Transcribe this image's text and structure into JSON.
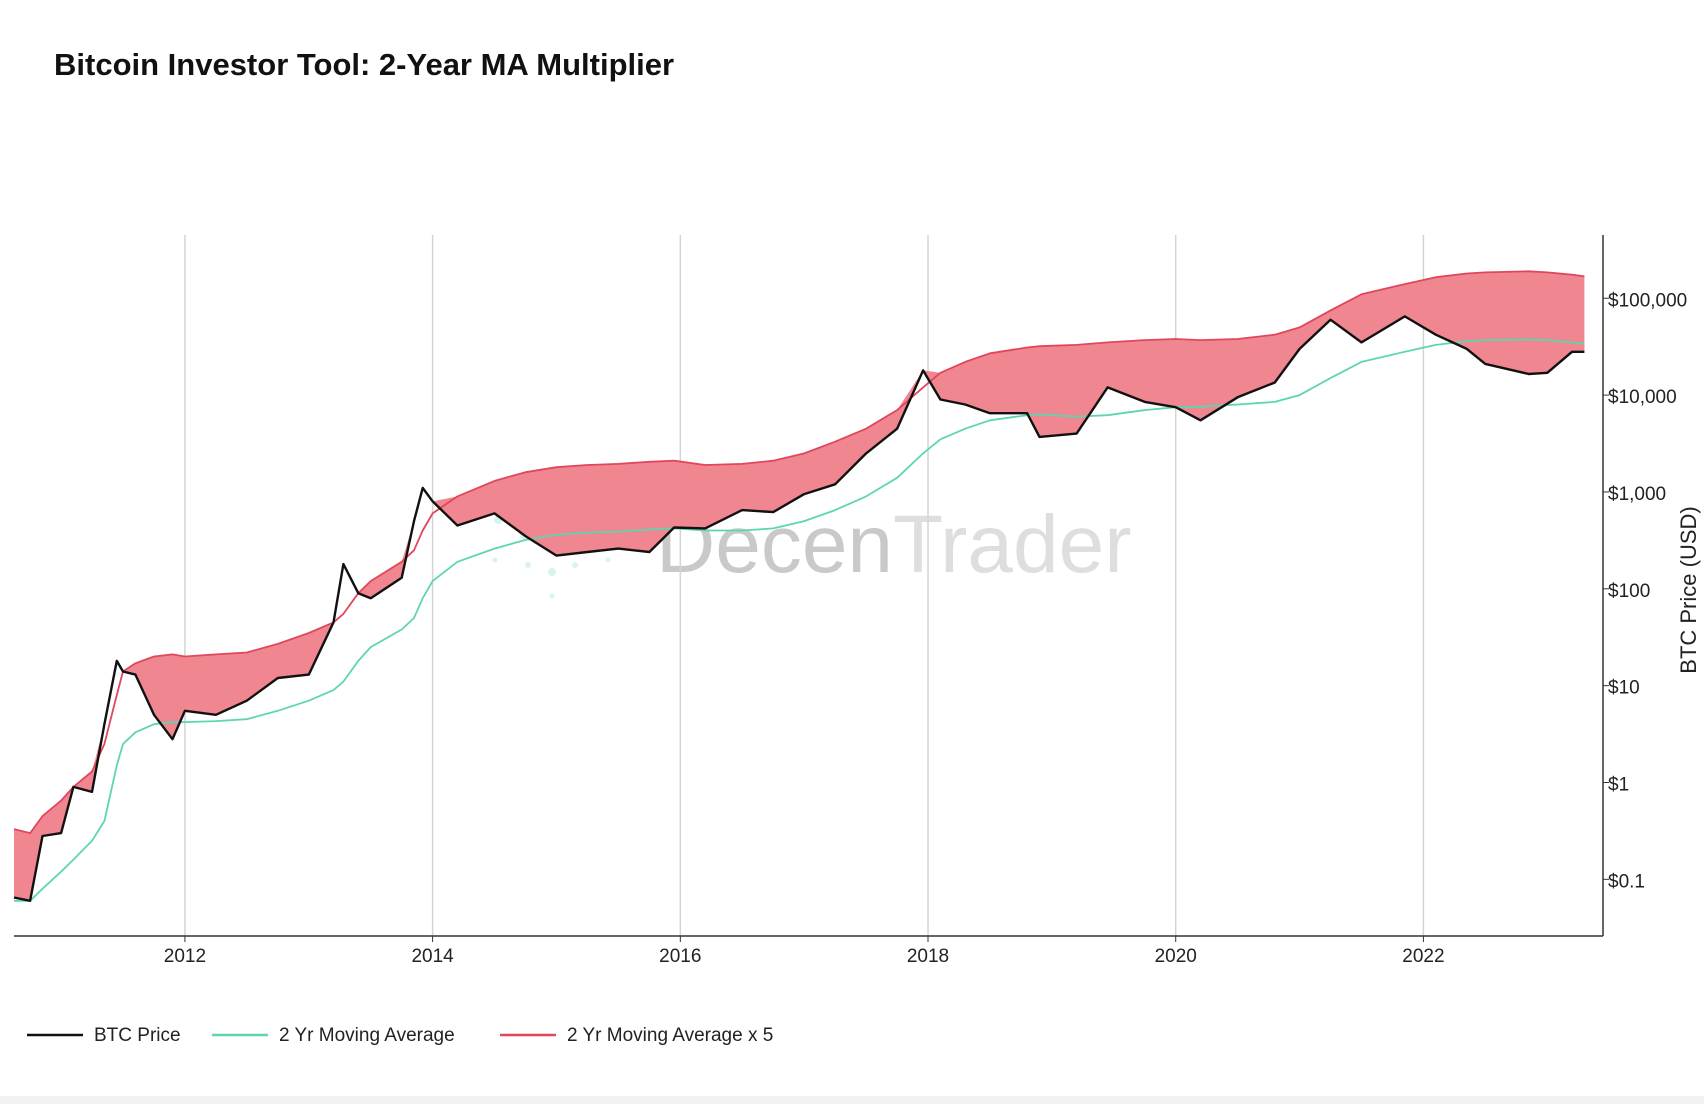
{
  "chart_data": {
    "type": "line",
    "title": "Bitcoin Investor Tool: 2-Year MA Multiplier",
    "watermark": [
      "Decen",
      "Trader"
    ],
    "y_axis_label": "BTC Price (USD)",
    "log_y": true,
    "grid": true,
    "legend": "bottom-left",
    "x": [
      2010.62,
      2010.75,
      2010.85,
      2011.0,
      2011.1,
      2011.25,
      2011.35,
      2011.45,
      2011.5,
      2011.6,
      2011.75,
      2011.9,
      2012.0,
      2012.25,
      2012.5,
      2012.75,
      2013.0,
      2013.2,
      2013.28,
      2013.4,
      2013.5,
      2013.75,
      2013.85,
      2013.92,
      2014.0,
      2014.2,
      2014.5,
      2014.75,
      2015.0,
      2015.25,
      2015.5,
      2015.75,
      2015.95,
      2016.2,
      2016.5,
      2016.75,
      2017.0,
      2017.25,
      2017.5,
      2017.75,
      2017.96,
      2018.1,
      2018.3,
      2018.5,
      2018.8,
      2018.9,
      2019.2,
      2019.45,
      2019.75,
      2020.0,
      2020.2,
      2020.5,
      2020.8,
      2021.0,
      2021.25,
      2021.5,
      2021.85,
      2022.1,
      2022.35,
      2022.5,
      2022.85,
      2023.0,
      2023.2,
      2023.3
    ],
    "series": [
      {
        "name": "BTC Price",
        "color": "#111111",
        "values": [
          0.065,
          0.06,
          0.28,
          0.3,
          0.9,
          0.8,
          4,
          18,
          14,
          13,
          5,
          2.8,
          5.5,
          5,
          7,
          12,
          13,
          45,
          180,
          90,
          80,
          130,
          500,
          1100,
          800,
          450,
          600,
          350,
          220,
          240,
          260,
          240,
          430,
          420,
          650,
          620,
          950,
          1200,
          2500,
          4500,
          18000,
          9000,
          8000,
          6500,
          6500,
          3700,
          4000,
          12000,
          8500,
          7500,
          5500,
          9500,
          13500,
          30000,
          60000,
          35000,
          65000,
          42000,
          30000,
          21000,
          16500,
          17000,
          28000,
          28000
        ]
      },
      {
        "name": "2 Yr Moving Average",
        "color": "#5dd6ae",
        "values": [
          0.06,
          0.06,
          0.08,
          0.12,
          0.16,
          0.25,
          0.4,
          1.5,
          2.5,
          3.3,
          4.0,
          4.2,
          4.2,
          4.3,
          4.5,
          5.5,
          7,
          9,
          11,
          18,
          25,
          38,
          50,
          80,
          120,
          190,
          260,
          320,
          360,
          380,
          390,
          410,
          420,
          400,
          400,
          420,
          500,
          650,
          900,
          1400,
          2500,
          3500,
          4500,
          5500,
          6200,
          6300,
          6000,
          6200,
          7000,
          7500,
          7600,
          8000,
          8500,
          10000,
          15000,
          22000,
          28000,
          33000,
          36000,
          37000,
          37500,
          37000,
          35000,
          34000
        ]
      },
      {
        "name": "2 Yr Moving Average x 5",
        "color": "#e0475c",
        "values": [
          0.33,
          0.3,
          0.45,
          0.65,
          0.9,
          1.3,
          2.5,
          8,
          14,
          17,
          20,
          21,
          20,
          21,
          22,
          27,
          35,
          45,
          55,
          90,
          120,
          190,
          250,
          400,
          600,
          900,
          1300,
          1600,
          1800,
          1900,
          1950,
          2050,
          2100,
          1900,
          1950,
          2100,
          2500,
          3300,
          4500,
          7000,
          12000,
          17000,
          22000,
          27000,
          31000,
          32000,
          33000,
          35000,
          37000,
          38000,
          37000,
          38000,
          42000,
          50000,
          75000,
          110000,
          140000,
          165000,
          180000,
          185000,
          190000,
          185000,
          175000,
          168000
        ]
      }
    ],
    "fill_below_color": "#a6e8d0",
    "fill_above_color": "#f0868f",
    "xlim": [
      2010.62,
      2023.45
    ],
    "xticks": [
      2012,
      2014,
      2016,
      2018,
      2020,
      2022
    ],
    "ylim": [
      0.026,
      450000
    ],
    "yticks": [
      {
        "value": 0.1,
        "label": "$0.1"
      },
      {
        "value": 1,
        "label": "$1"
      },
      {
        "value": 10,
        "label": "$10"
      },
      {
        "value": 100,
        "label": "$100"
      },
      {
        "value": 1000,
        "label": "$1,000"
      },
      {
        "value": 10000,
        "label": "$10,000"
      },
      {
        "value": 100000,
        "label": "$100,000"
      }
    ]
  }
}
